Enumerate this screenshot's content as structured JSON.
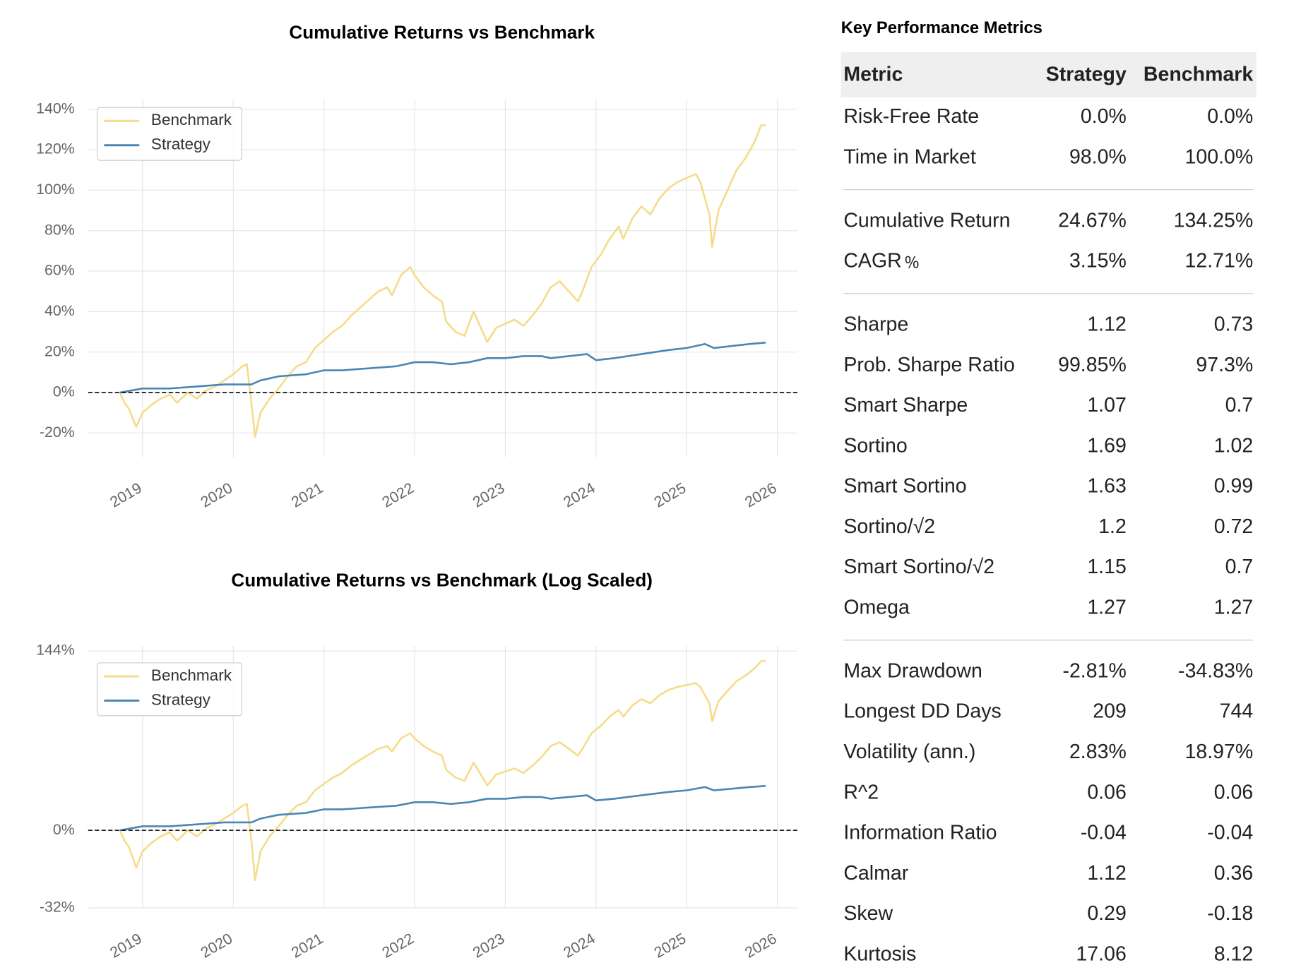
{
  "chart_data": [
    {
      "type": "line",
      "title": "Cumulative Returns vs Benchmark",
      "log_scale": false,
      "grid": true,
      "zero_line": true,
      "legend": "upper left",
      "xlim": [
        2018.4,
        2026.22
      ],
      "xticks": [
        2019,
        2020,
        2021,
        2022,
        2023,
        2024,
        2025,
        2026
      ],
      "ylim": [
        -32,
        145
      ],
      "yticks": [
        {
          "value": -20,
          "label": "-20%"
        },
        {
          "value": 0,
          "label": "0%"
        },
        {
          "value": 20,
          "label": "20%"
        },
        {
          "value": 40,
          "label": "40%"
        },
        {
          "value": 60,
          "label": "60%"
        },
        {
          "value": 80,
          "label": "80%"
        },
        {
          "value": 100,
          "label": "100%"
        },
        {
          "value": 120,
          "label": "120%"
        },
        {
          "value": 140,
          "label": "140%"
        }
      ],
      "series": [
        {
          "name": "Benchmark",
          "color": "#f5dc8a",
          "x": [
            2018.75,
            2018.8,
            2018.85,
            2018.93,
            2019.0,
            2019.1,
            2019.2,
            2019.3,
            2019.38,
            2019.5,
            2019.6,
            2019.7,
            2019.8,
            2019.9,
            2020.0,
            2020.1,
            2020.15,
            2020.2,
            2020.24,
            2020.3,
            2020.4,
            2020.5,
            2020.6,
            2020.7,
            2020.8,
            2020.9,
            2021.0,
            2021.1,
            2021.2,
            2021.3,
            2021.4,
            2021.5,
            2021.6,
            2021.7,
            2021.75,
            2021.85,
            2021.95,
            2022.0,
            2022.1,
            2022.2,
            2022.3,
            2022.35,
            2022.45,
            2022.55,
            2022.65,
            2022.72,
            2022.8,
            2022.9,
            2023.0,
            2023.1,
            2023.2,
            2023.3,
            2023.4,
            2023.5,
            2023.6,
            2023.7,
            2023.8,
            2023.85,
            2023.95,
            2024.05,
            2024.15,
            2024.25,
            2024.3,
            2024.4,
            2024.5,
            2024.6,
            2024.7,
            2024.8,
            2024.9,
            2025.0,
            2025.1,
            2025.15,
            2025.25,
            2025.28,
            2025.35,
            2025.45,
            2025.55,
            2025.65,
            2025.75,
            2025.82,
            2025.87
          ],
          "values": [
            0,
            -5,
            -8,
            -17,
            -10,
            -6,
            -3,
            -1,
            -5,
            0,
            -3,
            1,
            3,
            6,
            9,
            13,
            14,
            -5,
            -22,
            -10,
            -3,
            2,
            8,
            13,
            15,
            22,
            26,
            30,
            33,
            38,
            42,
            46,
            50,
            52,
            48,
            58,
            62,
            58,
            52,
            48,
            45,
            35,
            30,
            28,
            40,
            33,
            25,
            32,
            34,
            36,
            33,
            38,
            44,
            52,
            55,
            50,
            45,
            50,
            62,
            68,
            76,
            82,
            76,
            86,
            92,
            88,
            96,
            101,
            104,
            106,
            108,
            104,
            88,
            72,
            90,
            100,
            110,
            116,
            124,
            132,
            132
          ]
        },
        {
          "name": "Strategy",
          "color": "#4a86b4",
          "x": [
            2018.75,
            2019.0,
            2019.3,
            2019.6,
            2019.9,
            2020.2,
            2020.3,
            2020.5,
            2020.8,
            2021.0,
            2021.2,
            2021.5,
            2021.8,
            2022.0,
            2022.2,
            2022.4,
            2022.6,
            2022.8,
            2023.0,
            2023.2,
            2023.4,
            2023.5,
            2023.7,
            2023.9,
            2024.0,
            2024.2,
            2024.5,
            2024.8,
            2025.0,
            2025.2,
            2025.3,
            2025.5,
            2025.7,
            2025.87
          ],
          "values": [
            0,
            2,
            2,
            3,
            4,
            4,
            6,
            8,
            9,
            11,
            11,
            12,
            13,
            15,
            15,
            14,
            15,
            17,
            17,
            18,
            18,
            17,
            18,
            19,
            16,
            17,
            19,
            21,
            22,
            24,
            22,
            23,
            24,
            24.67
          ]
        }
      ]
    },
    {
      "type": "line",
      "title": "Cumulative Returns vs Benchmark (Log Scaled)",
      "log_scale": true,
      "grid": true,
      "zero_line": true,
      "legend": "upper left",
      "xlim": [
        2018.4,
        2026.22
      ],
      "xticks": [
        2019,
        2020,
        2021,
        2022,
        2023,
        2024,
        2025,
        2026
      ],
      "ylim": [
        -32,
        150
      ],
      "yticks": [
        {
          "value": -32,
          "label": "-32%"
        },
        {
          "value": 0,
          "label": "0%"
        },
        {
          "value": 144,
          "label": "144%"
        }
      ],
      "series": [
        {
          "name": "Benchmark",
          "color": "#f5dc8a",
          "x": [
            2018.75,
            2018.8,
            2018.85,
            2018.93,
            2019.0,
            2019.1,
            2019.2,
            2019.3,
            2019.38,
            2019.5,
            2019.6,
            2019.7,
            2019.8,
            2019.9,
            2020.0,
            2020.1,
            2020.15,
            2020.2,
            2020.24,
            2020.3,
            2020.4,
            2020.5,
            2020.6,
            2020.7,
            2020.8,
            2020.9,
            2021.0,
            2021.1,
            2021.2,
            2021.3,
            2021.4,
            2021.5,
            2021.6,
            2021.7,
            2021.75,
            2021.85,
            2021.95,
            2022.0,
            2022.1,
            2022.2,
            2022.3,
            2022.35,
            2022.45,
            2022.55,
            2022.65,
            2022.72,
            2022.8,
            2022.9,
            2023.0,
            2023.1,
            2023.2,
            2023.3,
            2023.4,
            2023.5,
            2023.6,
            2023.7,
            2023.8,
            2023.85,
            2023.95,
            2024.05,
            2024.15,
            2024.25,
            2024.3,
            2024.4,
            2024.5,
            2024.6,
            2024.7,
            2024.8,
            2024.9,
            2025.0,
            2025.1,
            2025.15,
            2025.25,
            2025.28,
            2025.35,
            2025.45,
            2025.55,
            2025.65,
            2025.75,
            2025.82,
            2025.87
          ],
          "values": [
            0,
            -5,
            -8,
            -17,
            -10,
            -6,
            -3,
            -1,
            -5,
            0,
            -3,
            1,
            3,
            6,
            9,
            13,
            14,
            -5,
            -22,
            -10,
            -3,
            2,
            8,
            13,
            15,
            22,
            26,
            30,
            33,
            38,
            42,
            46,
            50,
            52,
            48,
            58,
            62,
            58,
            52,
            48,
            45,
            35,
            30,
            28,
            40,
            33,
            25,
            32,
            34,
            36,
            33,
            38,
            44,
            52,
            55,
            50,
            45,
            50,
            62,
            68,
            76,
            82,
            76,
            86,
            92,
            88,
            96,
            101,
            104,
            106,
            108,
            104,
            88,
            72,
            90,
            100,
            110,
            116,
            124,
            132,
            132
          ]
        },
        {
          "name": "Strategy",
          "color": "#4a86b4",
          "x": [
            2018.75,
            2019.0,
            2019.3,
            2019.6,
            2019.9,
            2020.2,
            2020.3,
            2020.5,
            2020.8,
            2021.0,
            2021.2,
            2021.5,
            2021.8,
            2022.0,
            2022.2,
            2022.4,
            2022.6,
            2022.8,
            2023.0,
            2023.2,
            2023.4,
            2023.5,
            2023.7,
            2023.9,
            2024.0,
            2024.2,
            2024.5,
            2024.8,
            2025.0,
            2025.2,
            2025.3,
            2025.5,
            2025.7,
            2025.87
          ],
          "values": [
            0,
            2,
            2,
            3,
            4,
            4,
            6,
            8,
            9,
            11,
            11,
            12,
            13,
            15,
            15,
            14,
            15,
            17,
            17,
            18,
            18,
            17,
            18,
            19,
            16,
            17,
            19,
            21,
            22,
            24,
            22,
            23,
            24,
            24.67
          ]
        }
      ]
    }
  ],
  "metrics_table": {
    "title": "Key Performance Metrics",
    "header": [
      "Metric",
      "Strategy",
      "Benchmark"
    ],
    "groups": [
      [
        [
          "Risk-Free Rate",
          "0.0%",
          "0.0%"
        ],
        [
          "Time in Market",
          "98.0%",
          "100.0%"
        ]
      ],
      [
        [
          "Cumulative Return",
          "24.67%",
          "134.25%"
        ],
        [
          "CAGR﹪",
          "3.15%",
          "12.71%"
        ]
      ],
      [
        [
          "Sharpe",
          "1.12",
          "0.73"
        ],
        [
          "Prob. Sharpe Ratio",
          "99.85%",
          "97.3%"
        ],
        [
          "Smart Sharpe",
          "1.07",
          "0.7"
        ],
        [
          "Sortino",
          "1.69",
          "1.02"
        ],
        [
          "Smart Sortino",
          "1.63",
          "0.99"
        ],
        [
          "Sortino/√2",
          "1.2",
          "0.72"
        ],
        [
          "Smart Sortino/√2",
          "1.15",
          "0.7"
        ],
        [
          "Omega",
          "1.27",
          "1.27"
        ]
      ],
      [
        [
          "Max Drawdown",
          "-2.81%",
          "-34.83%"
        ],
        [
          "Longest DD Days",
          "209",
          "744"
        ],
        [
          "Volatility (ann.)",
          "2.83%",
          "18.97%"
        ],
        [
          "R^2",
          "0.06",
          "0.06"
        ],
        [
          "Information Ratio",
          "-0.04",
          "-0.04"
        ],
        [
          "Calmar",
          "1.12",
          "0.36"
        ],
        [
          "Skew",
          "0.29",
          "-0.18"
        ],
        [
          "Kurtosis",
          "17.06",
          "8.12"
        ]
      ]
    ]
  }
}
